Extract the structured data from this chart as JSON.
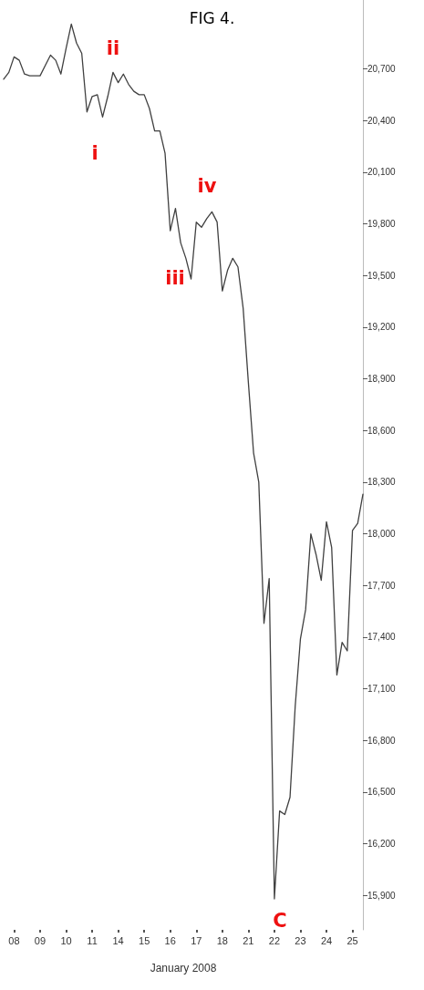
{
  "chart_data": {
    "type": "line",
    "title": "FIG 4.",
    "xlabel": "January 2008",
    "categories": [
      null,
      null,
      "08",
      null,
      null,
      null,
      null,
      "09",
      null,
      null,
      null,
      null,
      "10",
      null,
      null,
      null,
      null,
      "11",
      null,
      null,
      null,
      null,
      "14",
      null,
      null,
      null,
      null,
      "15",
      null,
      null,
      null,
      null,
      "16",
      null,
      null,
      null,
      null,
      "17",
      null,
      null,
      null,
      null,
      "18",
      null,
      null,
      null,
      null,
      "21",
      null,
      null,
      null,
      null,
      "22",
      null,
      null,
      null,
      null,
      "23",
      null,
      null,
      null,
      null,
      "24",
      null,
      null,
      null,
      null,
      "25",
      null,
      null
    ],
    "series": [
      {
        "color": "#404040",
        "values": [
          20640,
          20680,
          20770,
          20750,
          20670,
          20660,
          20660,
          20660,
          20720,
          20780,
          20750,
          20670,
          20820,
          20960,
          20850,
          20790,
          20450,
          20540,
          20550,
          20420,
          20540,
          20680,
          20620,
          20670,
          20610,
          20570,
          20550,
          20550,
          20470,
          20340,
          20340,
          20210,
          19760,
          19890,
          19690,
          19600,
          19480,
          19810,
          19780,
          19830,
          19870,
          19810,
          19410,
          19530,
          19600,
          19550,
          19310,
          18880,
          18470,
          18300,
          17480,
          17740,
          15880,
          16390,
          16370,
          16470,
          17000,
          17390,
          17560,
          18000,
          17880,
          17730,
          18070,
          17920,
          17180,
          17370,
          17320,
          18020,
          18060,
          18230
        ]
      }
    ],
    "ylim": [
      15700,
      21100
    ],
    "yticks": [
      {
        "value": 15900,
        "label": "15,900"
      },
      {
        "value": 16200,
        "label": "16,200"
      },
      {
        "value": 16500,
        "label": "16,500"
      },
      {
        "value": 16800,
        "label": "16,800"
      },
      {
        "value": 17100,
        "label": "17,100"
      },
      {
        "value": 17400,
        "label": "17,400"
      },
      {
        "value": 17700,
        "label": "17,700"
      },
      {
        "value": 18000,
        "label": "18,000"
      },
      {
        "value": 18300,
        "label": "18,300"
      },
      {
        "value": 18600,
        "label": "18,600"
      },
      {
        "value": 18900,
        "label": "18,900"
      },
      {
        "value": 19200,
        "label": "19,200"
      },
      {
        "value": 19500,
        "label": "19,500"
      },
      {
        "value": 19800,
        "label": "19,800"
      },
      {
        "value": 20100,
        "label": "20,100"
      },
      {
        "value": 20400,
        "label": "20,400"
      },
      {
        "value": 20700,
        "label": "20,700"
      }
    ],
    "annotations": [
      "i",
      "ii",
      "iii",
      "iv",
      "C"
    ],
    "grid": false,
    "marker": "none",
    "line_style": "solid"
  }
}
